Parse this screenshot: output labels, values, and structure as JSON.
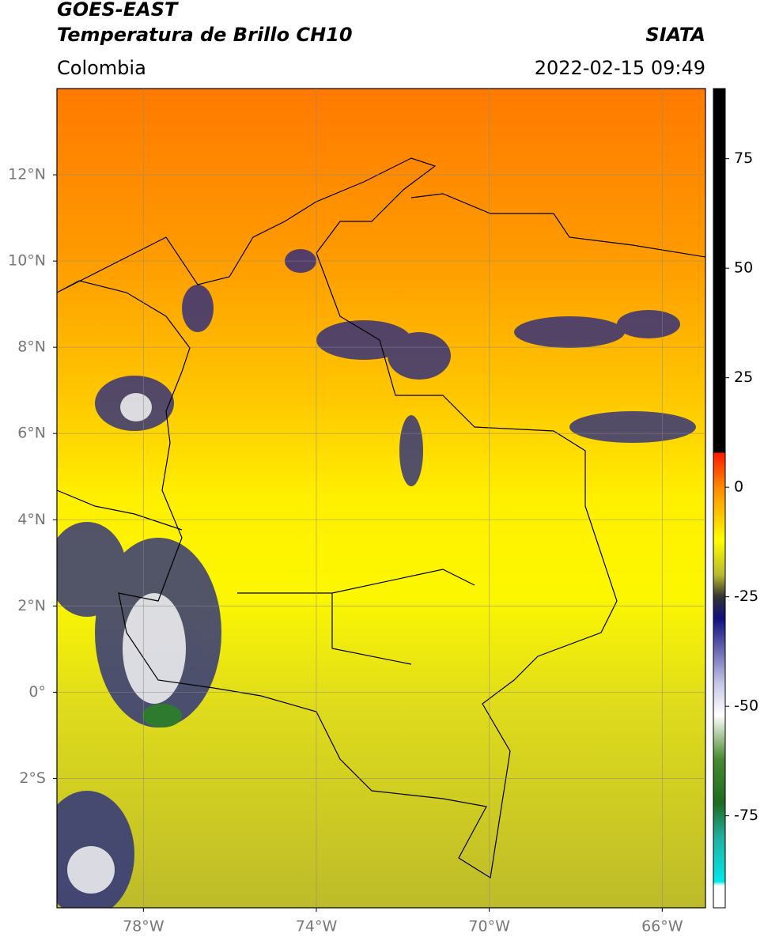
{
  "header": {
    "title": "GOES-EAST",
    "subtitle": "Temperatura de Brillo CH10",
    "source": "SIATA",
    "region": "Colombia",
    "datetime": "2022-02-15 09:49"
  },
  "map": {
    "xlim": [
      -80,
      -65
    ],
    "ylim": [
      -5,
      14
    ],
    "xticks": [
      {
        "value": -78,
        "label": "78°W"
      },
      {
        "value": -74,
        "label": "74°W"
      },
      {
        "value": -70,
        "label": "70°W"
      },
      {
        "value": -66,
        "label": "66°W"
      }
    ],
    "yticks": [
      {
        "value": 12,
        "label": "12°N"
      },
      {
        "value": 10,
        "label": "10°N"
      },
      {
        "value": 8,
        "label": "8°N"
      },
      {
        "value": 6,
        "label": "6°N"
      },
      {
        "value": 4,
        "label": "4°N"
      },
      {
        "value": 2,
        "label": "2°N"
      },
      {
        "value": 0,
        "label": "0°"
      },
      {
        "value": -2,
        "label": "2°S"
      }
    ],
    "grid": true
  },
  "colorbar": {
    "lim": [
      -96,
      91
    ],
    "ticks": [
      75,
      50,
      25,
      0,
      -25,
      -50,
      -75
    ]
  }
}
